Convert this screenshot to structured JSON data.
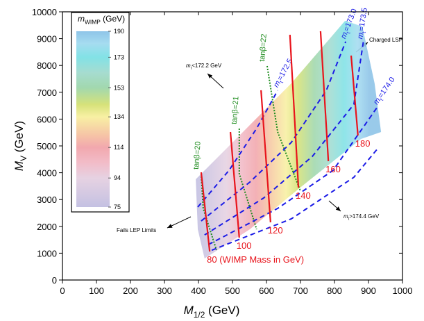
{
  "chart_data": {
    "type": "contour",
    "xlabel": {
      "base": "M",
      "sub": "1/2",
      "rest": " (GeV)"
    },
    "ylabel": {
      "base": "M",
      "sub": "V",
      "rest": " (GeV)"
    },
    "xlim": [
      0,
      1000
    ],
    "xticks": [
      0,
      100,
      200,
      300,
      400,
      500,
      600,
      700,
      800,
      900,
      1000
    ],
    "ylim": [
      0,
      10000
    ],
    "yticks": [
      0,
      1000,
      2000,
      3000,
      4000,
      5000,
      6000,
      7000,
      8000,
      9000,
      10000
    ],
    "colorbar": {
      "title": {
        "base": "m",
        "sub": "WIMP",
        "rest": " (GeV)"
      },
      "ticks": [
        75,
        94,
        114,
        134,
        153,
        173,
        190
      ],
      "stops": [
        {
          "value": 75,
          "color": "#c4c1e2"
        },
        {
          "value": 94,
          "color": "#e6d2e2"
        },
        {
          "value": 104,
          "color": "#f2bcc8"
        },
        {
          "value": 114,
          "color": "#f2a8ae"
        },
        {
          "value": 122,
          "color": "#f6c4a6"
        },
        {
          "value": 134,
          "color": "#f8f0a4"
        },
        {
          "value": 142,
          "color": "#d6e27a"
        },
        {
          "value": 153,
          "color": "#a2d8ae"
        },
        {
          "value": 163,
          "color": "#a6dcd0"
        },
        {
          "value": 173,
          "color": "#82e2e6"
        },
        {
          "value": 182,
          "color": "#a6dcf0"
        },
        {
          "value": 190,
          "color": "#8ec4e8"
        }
      ]
    },
    "region": {
      "x": [
        392,
        490,
        673,
        831,
        882,
        918,
        937,
        878,
        694,
        551,
        418,
        398
      ],
      "y": [
        3756,
        5000,
        7332,
        9663,
        9456,
        7332,
        5518,
        5259,
        3394,
        1891,
        803,
        1891
      ]
    },
    "mass_lines": {
      "color": "#e8141c",
      "values": [
        80,
        100,
        120,
        140,
        160,
        180
      ],
      "value_labels": [
        "80 (WIMP Mass in GeV)",
        "100",
        "120",
        "140",
        "160",
        "180"
      ],
      "x": [
        [
          433,
          408
        ],
        [
          520,
          494
        ],
        [
          612,
          584
        ],
        [
          694,
          669
        ],
        [
          782,
          759
        ],
        [
          869,
          849
        ]
      ],
      "y": [
        [
          1062,
          4016
        ],
        [
          1580,
          5518
        ],
        [
          2150,
          7073
        ],
        [
          3446,
          9145
        ],
        [
          4430,
          9275
        ],
        [
          5389,
          8368
        ]
      ]
    },
    "mt_lines": {
      "color": "#1a1ae6",
      "labels": [
        {
          "base": "m",
          "sub": "t",
          "rest": "=172.5"
        },
        {
          "base": "m",
          "sub": "t",
          "rest": "=173.0"
        },
        {
          "base": "m",
          "sub": "t",
          "rest": "=173.5"
        },
        {
          "base": "m",
          "sub": "t",
          "rest": "=174.0"
        },
        null
      ],
      "x": [
        [
          398,
          490,
          571,
          633
        ],
        [
          408,
          551,
          673,
          776,
          833
        ],
        [
          418,
          592,
          735,
          857,
          885
        ],
        [
          429,
          633,
          796,
          925
        ],
        [
          439,
          673,
          857,
          925
        ]
      ],
      "y": [
        [
          2720,
          4090,
          5650,
          7070
        ],
        [
          2200,
          3650,
          5130,
          7070,
          8890
        ],
        [
          1680,
          3060,
          4610,
          6550,
          8890
        ],
        [
          1320,
          2670,
          4090,
          6430
        ],
        [
          1110,
          2280,
          3830,
          4870
        ]
      ]
    },
    "tanb_lines": {
      "color": "#1e8c1e",
      "labels": [
        "tanβ=20",
        "tanβ=21",
        "tanβ=22"
      ],
      "x": [
        [
          408,
          414,
          453
        ],
        [
          520,
          520,
          571
        ],
        [
          602,
          633,
          700
        ]
      ],
      "y": [
        [
          3964,
          2668,
          1114
        ],
        [
          5648,
          3964,
          1891
        ],
        [
          7979,
          5518,
          3316
        ]
      ]
    },
    "annotations": [
      {
        "base": "m",
        "sub": "t",
        "rest": "<172.2 GeV"
      },
      {
        "text": "Charged LSP"
      },
      {
        "base": "m",
        "sub": "t",
        "rest": ">174.4 GeV"
      },
      {
        "text": "Fails LEP Limits"
      }
    ]
  }
}
